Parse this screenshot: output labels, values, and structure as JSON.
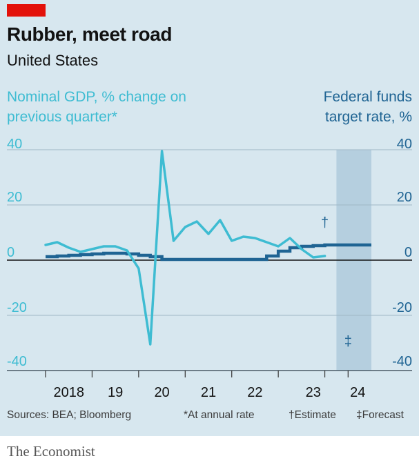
{
  "header": {
    "title": "Rubber, meet road",
    "subtitle": "United States"
  },
  "footer": {
    "sources": "Sources: BEA; Bloomberg",
    "note_annual": "*At annual rate",
    "note_estimate": "†Estimate",
    "note_forecast": "‡Forecast"
  },
  "brand": "The Economist",
  "chart_data": {
    "type": "line",
    "title": "Rubber, meet road",
    "subtitle": "United States",
    "left_axis_label": "Nominal GDP, % change on previous quarter*",
    "right_axis_label": "Federal funds target rate, %",
    "ylim": [
      -40,
      40
    ],
    "yticks": [
      40,
      20,
      0,
      -20,
      -40
    ],
    "ytick_labels": [
      "40",
      "20",
      "0",
      "-20",
      "-40"
    ],
    "xlim": [
      2017.5,
      2025.0
    ],
    "xtick_labels": [
      "2018",
      "19",
      "20",
      "21",
      "22",
      "23",
      "24"
    ],
    "forecast_shading": {
      "from": 2023.75,
      "to": 2024.5
    },
    "annotations": [
      {
        "text": "†",
        "x": 2023.5,
        "y": 12
      },
      {
        "text": "‡",
        "x": 2024.0,
        "y": -31
      }
    ],
    "colors": {
      "gdp": "#3ebcd2",
      "fed": "#1f6493",
      "shade": "#b5cfdf",
      "grid": "#9fb7c5",
      "background": "#d7e7ef",
      "brand_red": "#e3120b"
    },
    "series": [
      {
        "key": "gdp",
        "x": [
          2017.5,
          2017.75,
          2018.0,
          2018.25,
          2018.5,
          2018.75,
          2019.0,
          2019.25,
          2019.5,
          2019.75,
          2020.0,
          2020.25,
          2020.5,
          2020.75,
          2021.0,
          2021.25,
          2021.5,
          2021.75,
          2022.0,
          2022.25,
          2022.5,
          2022.75,
          2023.0,
          2023.25,
          2023.5,
          2023.75,
          2024.0,
          2024.25
        ],
        "values": [
          5.5,
          6.5,
          4.5,
          3,
          4,
          5,
          5,
          3.5,
          -3,
          -30.5,
          39.5,
          7,
          12,
          14,
          9.5,
          14.5,
          7,
          8.5,
          8,
          6.5,
          5,
          8,
          4,
          1,
          1.5,
          null,
          null,
          null
        ]
      },
      {
        "key": "fed",
        "x": [
          2017.5,
          2017.75,
          2018.0,
          2018.25,
          2018.5,
          2018.75,
          2019.0,
          2019.25,
          2019.5,
          2019.75,
          2020.0,
          2020.25,
          2020.5,
          2020.75,
          2021.0,
          2021.25,
          2021.5,
          2021.75,
          2022.0,
          2022.25,
          2022.5,
          2022.75,
          2023.0,
          2023.25,
          2023.5,
          2023.75,
          2024.0,
          2024.25
        ],
        "values": [
          1.25,
          1.5,
          1.75,
          2.0,
          2.25,
          2.5,
          2.5,
          2.25,
          1.75,
          1.25,
          0.25,
          0.25,
          0.25,
          0.25,
          0.25,
          0.25,
          0.25,
          0.25,
          0.25,
          1.5,
          3.25,
          4.5,
          5.0,
          5.25,
          5.5,
          5.5,
          5.5,
          5.5
        ]
      }
    ]
  }
}
